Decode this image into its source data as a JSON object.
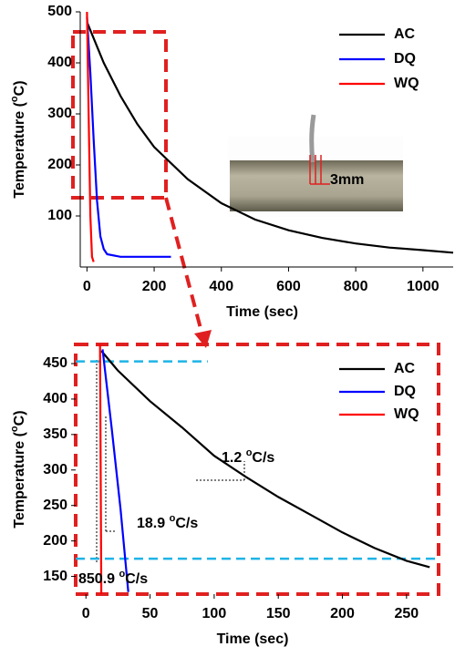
{
  "chart_data": [
    {
      "type": "line",
      "xlabel": "Time (sec)",
      "ylabel": [
        "Temperature (",
        "o",
        "C)"
      ],
      "xlim": [
        -20,
        1090
      ],
      "ylim": [
        0,
        500
      ],
      "xticks": [
        0,
        200,
        400,
        600,
        800,
        1000
      ],
      "yticks": [
        100,
        200,
        300,
        400,
        500
      ],
      "legend": "upper right",
      "series": [
        {
          "name": "AC",
          "color": "#000000",
          "x": [
            0,
            50,
            100,
            150,
            200,
            300,
            400,
            500,
            600,
            700,
            800,
            900,
            1000,
            1090
          ],
          "values": [
            480,
            400,
            335,
            280,
            235,
            172,
            125,
            93,
            72,
            57,
            46,
            38,
            33,
            28
          ]
        },
        {
          "name": "DQ",
          "color": "#0000ff",
          "x": [
            0,
            10,
            20,
            30,
            40,
            50,
            60,
            100,
            250
          ],
          "values": [
            490,
            380,
            250,
            130,
            60,
            35,
            25,
            20,
            20
          ]
        },
        {
          "name": "WQ",
          "color": "#ff0000",
          "x": [
            0,
            5,
            10,
            15,
            20
          ],
          "values": [
            500,
            300,
            100,
            20,
            10
          ]
        }
      ],
      "annotations": [
        {
          "text": "3mm",
          "color": "#e02020"
        }
      ]
    },
    {
      "type": "line",
      "xlabel": "Time (sec)",
      "ylabel": [
        "Temperature (",
        "o",
        "C)"
      ],
      "xlim": [
        -8,
        275
      ],
      "ylim": [
        125,
        477
      ],
      "xticks": [
        0,
        50,
        100,
        150,
        200,
        250
      ],
      "yticks": [
        150,
        200,
        250,
        300,
        350,
        400,
        450
      ],
      "legend": "upper right",
      "series": [
        {
          "name": "AC",
          "color": "#000000",
          "x": [
            12,
            25,
            50,
            75,
            100,
            125,
            150,
            175,
            200,
            225,
            250,
            268
          ],
          "values": [
            468,
            440,
            397,
            360,
            320,
            290,
            262,
            237,
            212,
            190,
            172,
            163
          ]
        },
        {
          "name": "DQ",
          "color": "#0000ff",
          "x": [
            13,
            20,
            27,
            33
          ],
          "values": [
            470,
            360,
            245,
            128
          ]
        },
        {
          "name": "WQ",
          "color": "#ff0000",
          "x": [
            11,
            12
          ],
          "values": [
            477,
            125
          ]
        }
      ],
      "reference_lines": [
        {
          "y": 453,
          "x": [
            -8,
            95
          ],
          "color": "#1eb4e6"
        },
        {
          "y": 175,
          "x": [
            -8,
            275
          ],
          "color": "#1eb4e6"
        }
      ],
      "annotations": [
        {
          "text": [
            "1.2 ",
            "o",
            "C/s"
          ],
          "color": "#000000"
        },
        {
          "text": [
            "18.9 ",
            "o",
            "C/s"
          ],
          "color": "#0000ff"
        },
        {
          "text": [
            "850.9 ",
            "o",
            "C/s"
          ],
          "color": "#e02020"
        }
      ]
    }
  ]
}
